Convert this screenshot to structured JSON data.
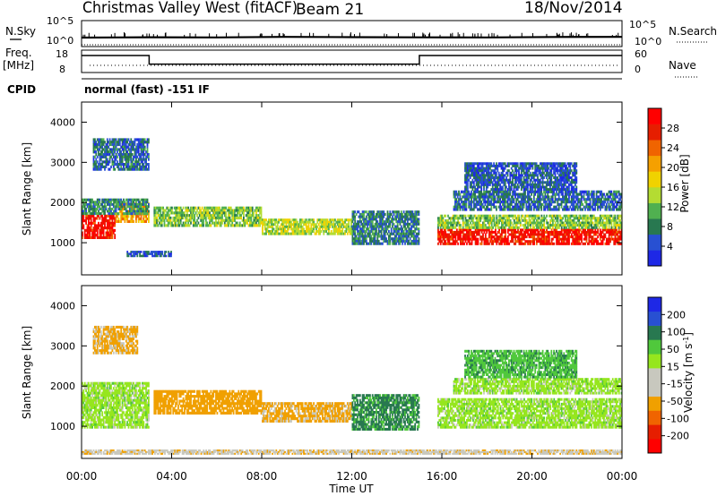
{
  "header": {
    "station": "Christmas Valley West (fitACF)",
    "beam": "Beam 21",
    "date": "18/Nov/2014",
    "program": "normal (fast) -151 IF"
  },
  "strip": {
    "nsky_label": "N.Sky",
    "nsky_ticks": [
      "10^5",
      "10^0"
    ],
    "nsearch_label": "N.Search",
    "nsearch_ticks": [
      "10^5",
      "10^0"
    ],
    "freq_label_1": "Freq.",
    "freq_label_2": "[MHz]",
    "freq_ticks": [
      "18",
      "8"
    ],
    "nave_label": "Nave",
    "nave_ticks": [
      "60",
      "0"
    ],
    "cpid_label": "CPID"
  },
  "x_axis": {
    "label": "Time UT",
    "ticks": [
      "00:00",
      "04:00",
      "08:00",
      "12:00",
      "16:00",
      "20:00",
      "00:00"
    ]
  },
  "colors": {
    "power_scale": [
      "#1e28e6",
      "#2850d2",
      "#287850",
      "#50b050",
      "#b4dc32",
      "#f0d200",
      "#f5a000",
      "#f06400",
      "#e61e00",
      "#ff0000"
    ],
    "velocity_scale": [
      "#1e28e6",
      "#2850d2",
      "#287850",
      "#50c83c",
      "#96e61e",
      "#c8c8be",
      "#c8c8be",
      "#f0a000",
      "#f06400",
      "#e61e00",
      "#ff0000"
    ]
  },
  "chart_data": [
    {
      "type": "line",
      "title": "",
      "series": [
        {
          "name": "N.Sky",
          "x_hours": [
            0,
            3,
            6,
            9,
            12,
            15,
            18,
            21,
            24
          ],
          "values": [
            20,
            25,
            22,
            30,
            26,
            24,
            22,
            28,
            30
          ]
        },
        {
          "name": "N.Search",
          "x_hours": [
            0,
            24
          ],
          "values": [
            1,
            1
          ]
        }
      ],
      "ylabel": "N.Sky",
      "ylabel_right": "N.Search",
      "yscale": "log",
      "ylim": [
        1,
        100000
      ]
    },
    {
      "type": "line",
      "title": "",
      "series": [
        {
          "name": "Freq.",
          "x_hours": [
            0,
            3,
            3,
            15,
            15,
            24
          ],
          "values": [
            15.5,
            15.5,
            11.5,
            11.5,
            15.5,
            15.5
          ]
        },
        {
          "name": "Nave",
          "x_hours": [
            0,
            24
          ],
          "values": [
            12,
            12
          ]
        }
      ],
      "ylabel": "Freq. [MHz]",
      "ylabel_right": "Nave",
      "ylim": [
        8,
        18
      ],
      "ylim_right": [
        0,
        60
      ]
    },
    {
      "type": "heatmap",
      "title": "",
      "xlabel": "Time UT",
      "ylabel": "Slant Range [km]",
      "xlim_hours": [
        0,
        24
      ],
      "ylim": [
        200,
        4500
      ],
      "yticks": [
        1000,
        2000,
        3000,
        4000
      ],
      "colorbar": {
        "label": "Power [dB]",
        "ticks": [
          "4",
          "8",
          "12",
          "16",
          "20",
          "24",
          "28"
        ],
        "range": [
          0,
          30
        ]
      },
      "echo_bands": [
        {
          "t0": 0.0,
          "t1": 1.5,
          "r0": 1100,
          "r1": 1700,
          "power": 27
        },
        {
          "t0": 1.5,
          "t1": 3.0,
          "r0": 1500,
          "r1": 2000,
          "power": 20
        },
        {
          "t0": 0.0,
          "t1": 3.0,
          "r0": 1700,
          "r1": 2100,
          "power": 8
        },
        {
          "t0": 0.5,
          "t1": 3.0,
          "r0": 2800,
          "r1": 3600,
          "power": 6
        },
        {
          "t0": 3.2,
          "t1": 8.0,
          "r0": 1400,
          "r1": 1900,
          "power": 12
        },
        {
          "t0": 8.0,
          "t1": 12.0,
          "r0": 1200,
          "r1": 1600,
          "power": 14
        },
        {
          "t0": 12.0,
          "t1": 15.0,
          "r0": 950,
          "r1": 1800,
          "power": 7
        },
        {
          "t0": 15.8,
          "t1": 24.0,
          "r0": 950,
          "r1": 1350,
          "power": 27
        },
        {
          "t0": 15.8,
          "t1": 24.0,
          "r0": 1350,
          "r1": 1700,
          "power": 12
        },
        {
          "t0": 16.5,
          "t1": 24.0,
          "r0": 1800,
          "r1": 2300,
          "power": 6
        },
        {
          "t0": 17.0,
          "t1": 22.0,
          "r0": 2300,
          "r1": 3000,
          "power": 5
        },
        {
          "t0": 2.0,
          "t1": 4.0,
          "r0": 650,
          "r1": 800,
          "power": 5
        }
      ]
    },
    {
      "type": "heatmap",
      "title": "",
      "xlabel": "Time UT",
      "ylabel": "Slant Range [km]",
      "xlim_hours": [
        0,
        24
      ],
      "ylim": [
        200,
        4500
      ],
      "yticks": [
        1000,
        2000,
        3000,
        4000
      ],
      "colorbar": {
        "label": "Velocity [m s^-1]",
        "ticks": [
          "200",
          "100",
          "50",
          "15",
          "-15",
          "-50",
          "-100",
          "-200"
        ],
        "range": [
          -250,
          250
        ]
      },
      "echo_bands": [
        {
          "t0": 0.0,
          "t1": 3.0,
          "r0": 950,
          "r1": 2100,
          "velocity": 0
        },
        {
          "t0": 0.5,
          "t1": 2.5,
          "r0": 2800,
          "r1": 3500,
          "velocity": -60
        },
        {
          "t0": 3.2,
          "t1": 8.0,
          "r0": 1300,
          "r1": 1900,
          "velocity": -70
        },
        {
          "t0": 8.0,
          "t1": 12.0,
          "r0": 1100,
          "r1": 1600,
          "velocity": -60
        },
        {
          "t0": 12.0,
          "t1": 15.0,
          "r0": 900,
          "r1": 1800,
          "velocity": 60
        },
        {
          "t0": 15.8,
          "t1": 24.0,
          "r0": 950,
          "r1": 1700,
          "velocity": 0
        },
        {
          "t0": 16.5,
          "t1": 24.0,
          "r0": 1800,
          "r1": 2200,
          "velocity": 0
        },
        {
          "t0": 17.0,
          "t1": 22.0,
          "r0": 2200,
          "r1": 2900,
          "velocity": 40
        },
        {
          "t0": 0.0,
          "t1": 24.0,
          "r0": 300,
          "r1": 420,
          "velocity": -40
        }
      ]
    }
  ]
}
